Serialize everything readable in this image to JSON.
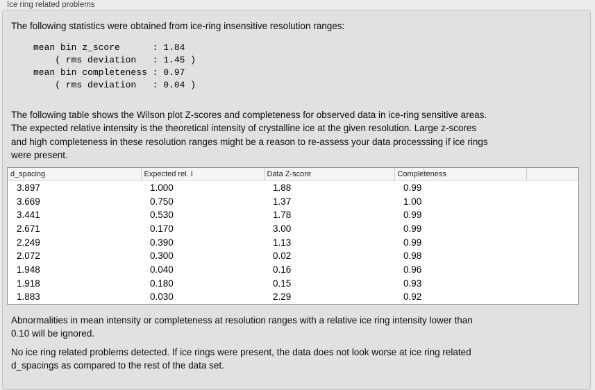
{
  "window": {
    "title": "Ice ring related problems"
  },
  "panel": {
    "intro": "The following statistics were obtained from ice-ring insensitive resolution ranges:",
    "stats_block": {
      "lines": [
        "mean bin z_score      : 1.84",
        "    ( rms deviation   : 1.45 )",
        "mean bin completeness : 0.97",
        "    ( rms deviation   : 0.04 )"
      ]
    },
    "table_description": [
      "The following table shows the Wilson plot Z-scores and completeness for observed data in ice-ring sensitive areas.",
      "The expected relative intensity is the theoretical intensity of crystalline ice at the given resolution. Large z-scores",
      "and high completeness in these resolution ranges might be a reason to re-assess your data processsing if ice rings",
      "were present."
    ],
    "table": {
      "columns": [
        "d_spacing",
        "Expected rel. I",
        "Data Z-score",
        "Completeness"
      ],
      "rows": [
        [
          "3.897",
          "1.000",
          "1.88",
          "0.99"
        ],
        [
          "3.669",
          "0.750",
          "1.37",
          "1.00"
        ],
        [
          "3.441",
          "0.530",
          "1.78",
          "0.99"
        ],
        [
          "2.671",
          "0.170",
          "3.00",
          "0.99"
        ],
        [
          "2.249",
          "0.390",
          "1.13",
          "0.99"
        ],
        [
          "2.072",
          "0.300",
          "0.02",
          "0.98"
        ],
        [
          "1.948",
          "0.040",
          "0.16",
          "0.96"
        ],
        [
          "1.918",
          "0.180",
          "0.15",
          "0.93"
        ],
        [
          "1.883",
          "0.030",
          "2.29",
          "0.92"
        ]
      ]
    },
    "ignore_note": [
      "Abnormalities in mean intensity or completeness at resolution ranges with a relative ice ring intensity lower than",
      "0.10 will be ignored."
    ],
    "conclusion": [
      "No ice ring related problems detected. If ice rings were present, the data does not look worse at ice ring related",
      "d_spacings as compared to the rest of the data set."
    ]
  },
  "colors": {
    "page_bg": "#ebebeb",
    "panel_bg": "#e1e1e1",
    "panel_border": "#c2c2c2",
    "table_bg": "#ffffff",
    "table_border": "#8f8f8f",
    "table_header_bg": "#f5f5f5",
    "header_divider": "#c9c9c9",
    "text": "#0d0d0d"
  }
}
